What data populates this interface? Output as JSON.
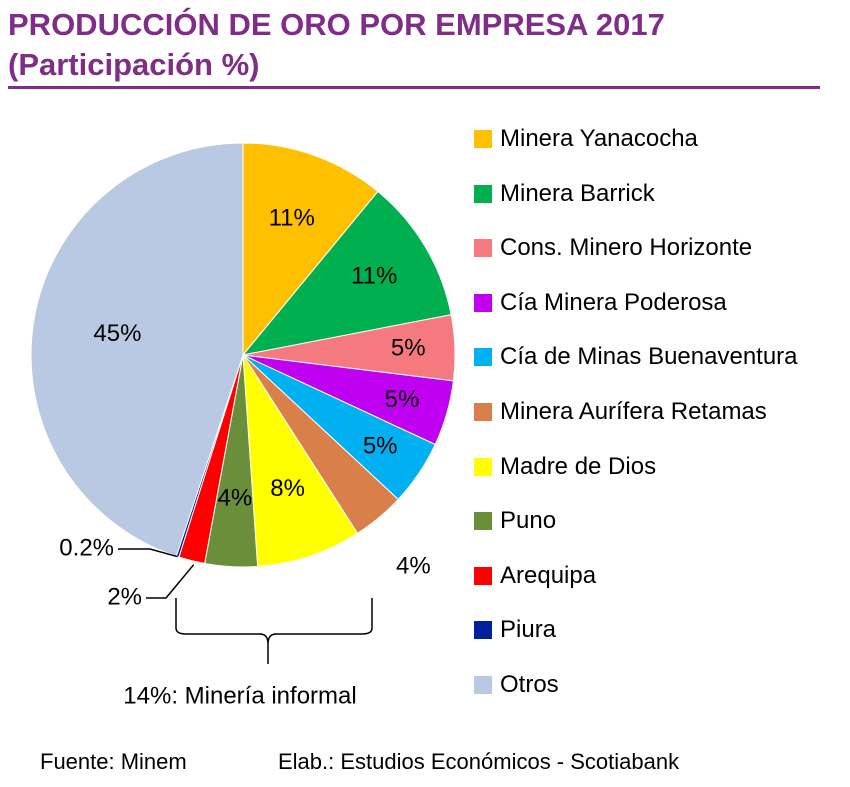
{
  "title_line1": "PRODUCCIÓN DE ORO POR EMPRESA 2017",
  "title_line2": "(Participación %)",
  "colors": {
    "title": "#7f2d86"
  },
  "chart_data": {
    "type": "pie",
    "title": "PRODUCCIÓN DE ORO POR EMPRESA 2017 (Participación %)",
    "unit": "%",
    "slices": [
      {
        "label": "Minera Yanacocha",
        "value": 11,
        "display": "11%",
        "color": "#ffc000"
      },
      {
        "label": "Minera Barrick",
        "value": 11,
        "display": "11%",
        "color": "#00b050"
      },
      {
        "label": "Cons. Minero Horizonte",
        "value": 5,
        "display": "5%",
        "color": "#f47a7f"
      },
      {
        "label": "Cía Minera Poderosa",
        "value": 5,
        "display": "5%",
        "color": "#c000f0"
      },
      {
        "label": "Cía de Minas Buenaventura",
        "value": 5,
        "display": "5%",
        "color": "#00b0f0"
      },
      {
        "label": "Minera Aurífera Retamas",
        "value": 4,
        "display": "4%",
        "color": "#d9804a"
      },
      {
        "label": "Madre de Dios",
        "value": 8,
        "display": "8%",
        "color": "#ffff00"
      },
      {
        "label": "Puno",
        "value": 4,
        "display": "4%",
        "color": "#6b8e3b"
      },
      {
        "label": "Arequipa",
        "value": 2,
        "display": "2%",
        "color": "#ff0000"
      },
      {
        "label": "Piura",
        "value": 0.2,
        "display": "0.2%",
        "color": "#001f9c"
      },
      {
        "label": "Otros",
        "value": 45,
        "display": "45%",
        "color": "#b9c9e3"
      }
    ],
    "bracket_annotation": "14%: Minería informal",
    "legend_position": "right"
  },
  "footer": {
    "source": "Fuente: Minem",
    "elaboration": "Elab.: Estudios Económicos - Scotiabank"
  }
}
